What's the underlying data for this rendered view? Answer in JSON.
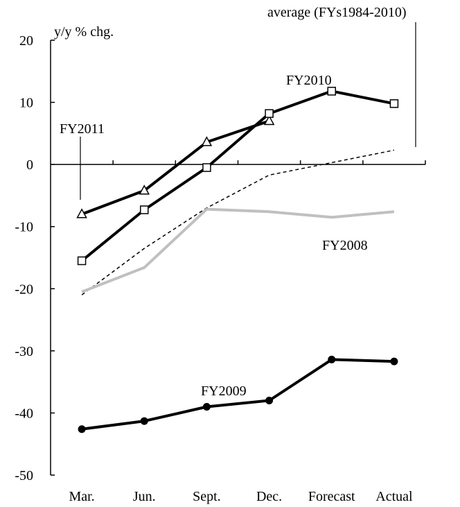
{
  "chart_data": {
    "type": "line",
    "title": "",
    "ylabel": "y/y % chg.",
    "xlabel": "",
    "categories": [
      "Mar.",
      "Jun.",
      "Sept.",
      "Dec.",
      "Forecast",
      "Actual"
    ],
    "ylim": [
      -50,
      20
    ],
    "yticks": [
      20,
      10,
      0,
      -10,
      -20,
      -30,
      -40,
      -50
    ],
    "grid": false,
    "legend": "none",
    "series": [
      {
        "name": "FY2011",
        "color": "#000000",
        "dash": "solid",
        "marker": "triangle",
        "values": [
          -8,
          -4.2,
          3.6,
          7,
          null,
          null
        ]
      },
      {
        "name": "FY2010",
        "color": "#000000",
        "dash": "solid",
        "marker": "square",
        "values": [
          -15.5,
          -7.3,
          -0.5,
          8.2,
          11.8,
          9.8
        ]
      },
      {
        "name": "average (FYs1984-2010)",
        "color": "#000000",
        "dash": "dashed",
        "marker": "none",
        "values": [
          -21,
          -13.5,
          -7,
          -1.7,
          0.3,
          2.3
        ]
      },
      {
        "name": "FY2008",
        "color": "#c0c0c0",
        "dash": "solid",
        "marker": "none",
        "values": [
          -20.5,
          -16.6,
          -7.2,
          -7.6,
          -8.5,
          -7.6
        ]
      },
      {
        "name": "FY2009",
        "color": "#000000",
        "dash": "solid",
        "marker": "circle",
        "values": [
          -42.6,
          -41.3,
          -39,
          -38,
          -31.4,
          -31.7
        ]
      }
    ]
  }
}
